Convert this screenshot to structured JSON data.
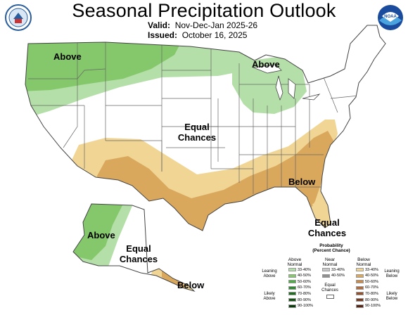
{
  "header": {
    "title": "Seasonal Precipitation Outlook",
    "valid_label": "Valid:",
    "valid_value": "Nov-Dec-Jan 2025-26",
    "issued_label": "Issued:",
    "issued_value": "October 16, 2025"
  },
  "logos": {
    "left": "doc-seal-icon",
    "right": "noaa-logo-icon"
  },
  "colors": {
    "above_light": "#b5dfa8",
    "above_mid": "#84c86b",
    "below_light": "#f1d594",
    "below_mid": "#d9a85d",
    "equal": "#ffffff",
    "boundary": "#555555"
  },
  "map_labels": {
    "above_west": "Above",
    "above_lakes": "Above",
    "equal_center_1": "Equal",
    "equal_center_2": "Chances",
    "below_southeast": "Below",
    "equal_florida_1": "Equal",
    "equal_florida_2": "Chances",
    "above_alaska": "Above",
    "equal_alaska_1": "Equal",
    "equal_alaska_2": "Chances",
    "below_alaska": "Below"
  },
  "legend": {
    "title_1": "Probability",
    "title_2": "(Percent Chance)",
    "col_above_1": "Above",
    "col_above_2": "Normal",
    "col_near_1": "Near",
    "col_near_2": "Normal",
    "col_below_1": "Below",
    "col_below_2": "Normal",
    "leaning_above_1": "Leaning",
    "leaning_above_2": "Above",
    "likely_above_1": "Likely",
    "likely_above_2": "Above",
    "leaning_below_1": "Leaning",
    "leaning_below_2": "Below",
    "likely_below_1": "Likely",
    "likely_below_2": "Below",
    "equal_chances_1": "Equal",
    "equal_chances_2": "Chances",
    "above_ranges": [
      "33-40%",
      "40-50%",
      "50-60%",
      "60-70%",
      "70-80%",
      "80-90%",
      "90-100%"
    ],
    "near_ranges": [
      "33-40%",
      "40-50%"
    ],
    "below_ranges": [
      "33-40%",
      "40-50%",
      "50-60%",
      "60-70%",
      "70-80%",
      "80-90%",
      "90-100%"
    ],
    "above_colors": [
      "#b5dfa8",
      "#84c86b",
      "#4fad45",
      "#2e8a2e",
      "#1f6e20",
      "#145214",
      "#0b3a0b"
    ],
    "near_colors": [
      "#c8c8c8",
      "#8f8f8f"
    ],
    "below_colors": [
      "#f1d594",
      "#d9a85d",
      "#c98a4a",
      "#b36a3a",
      "#95502c",
      "#75391f",
      "#552412"
    ]
  }
}
